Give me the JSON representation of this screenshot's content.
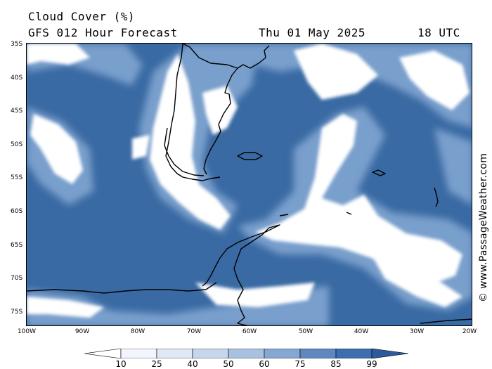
{
  "header": {
    "title": "Cloud Cover (%)",
    "subtitle": "GFS 012 Hour Forecast",
    "date": "Thu 01 May 2025",
    "time": "18 UTC"
  },
  "axes": {
    "lat_labels": [
      "35S",
      "40S",
      "45S",
      "50S",
      "55S",
      "60S",
      "65S",
      "70S",
      "75S"
    ],
    "lon_labels": [
      "100W",
      "90W",
      "80W",
      "70W",
      "60W",
      "50W",
      "40W",
      "30W",
      "20W"
    ]
  },
  "credit": "© www.PassageWeather.com",
  "legend": {
    "ticks": [
      "10",
      "25",
      "40",
      "50",
      "60",
      "75",
      "85",
      "99"
    ],
    "colors": [
      "#ffffff",
      "#f2f5fb",
      "#dfe8f5",
      "#c6d6ec",
      "#a9c1e0",
      "#86a7d1",
      "#5f88c0",
      "#3f6eae",
      "#2c5a9c"
    ]
  },
  "map": {
    "ocean_color": "#3a6aa3",
    "cloud_color": "#ffffff",
    "coast_color": "#000000"
  }
}
